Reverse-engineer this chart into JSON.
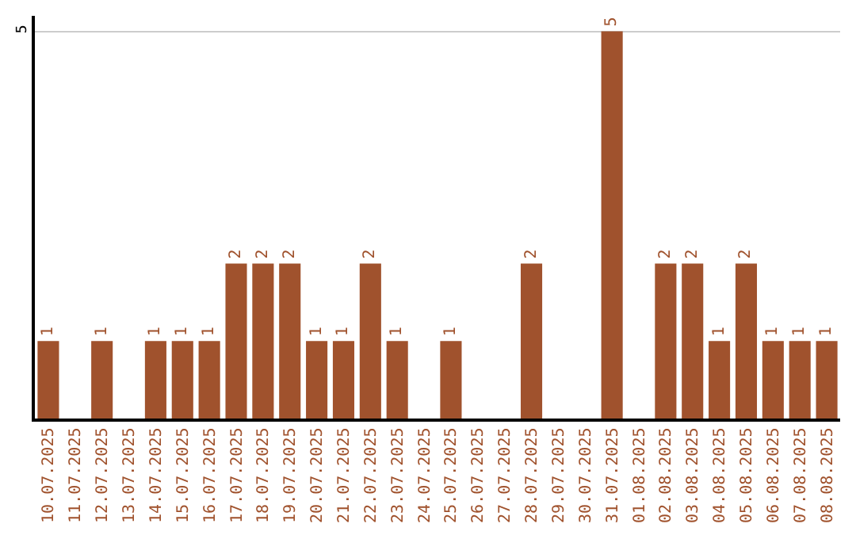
{
  "chart_data": {
    "type": "bar",
    "categories": [
      "10.07.2025",
      "11.07.2025",
      "12.07.2025",
      "13.07.2025",
      "14.07.2025",
      "15.07.2025",
      "16.07.2025",
      "17.07.2025",
      "18.07.2025",
      "19.07.2025",
      "20.07.2025",
      "21.07.2025",
      "22.07.2025",
      "23.07.2025",
      "24.07.2025",
      "25.07.2025",
      "26.07.2025",
      "27.07.2025",
      "28.07.2025",
      "29.07.2025",
      "30.07.2025",
      "31.07.2025",
      "01.08.2025",
      "02.08.2025",
      "03.08.2025",
      "04.08.2025",
      "05.08.2025",
      "06.08.2025",
      "07.08.2025",
      "08.08.2025"
    ],
    "values": [
      1,
      null,
      1,
      null,
      1,
      1,
      1,
      2,
      2,
      2,
      1,
      1,
      2,
      1,
      null,
      1,
      null,
      null,
      2,
      null,
      null,
      5,
      null,
      2,
      2,
      1,
      2,
      1,
      1,
      1
    ],
    "color": "#a0522d",
    "ylim": [
      0,
      5.2
    ],
    "yticks": [
      5
    ],
    "grid": "y",
    "data_labels": true,
    "legend": false
  }
}
